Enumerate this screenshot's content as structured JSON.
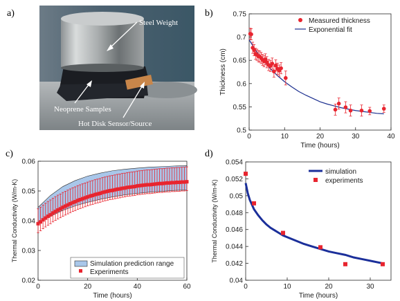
{
  "panel_letters": [
    "a)",
    "b)",
    "c)",
    "d)"
  ],
  "photo": {
    "labels": {
      "weight": "Steel Weight",
      "samples": "Neoprene Samples",
      "sensor": "Hot Disk Sensor/Source"
    },
    "colors": {
      "background": "#3f5a6a",
      "table": "#9fa3a6",
      "weight": "#b9bcbd",
      "neoprene": "#1b1d22",
      "sensor": "#c8864a",
      "label": "#ffffff"
    }
  },
  "chart_data": [
    {
      "panel": "b)",
      "type": "scatter",
      "title": "",
      "xlabel": "Time (hours)",
      "ylabel": "Thickness (cm)",
      "xlim": [
        0,
        40
      ],
      "ylim": [
        0.5,
        0.75
      ],
      "xticks": [
        "0",
        "10",
        "20",
        "30",
        "40"
      ],
      "yticks": [
        "0.5",
        "0.55",
        "0.6",
        "0.65",
        "0.7",
        "0.75"
      ],
      "legend": {
        "position": "top-right",
        "entries": [
          "Measured thickness",
          "Exponential fit"
        ]
      },
      "series": [
        {
          "name": "Measured thickness",
          "color": "#e8252f",
          "x": [
            0.3,
            0.6,
            1.0,
            1.4,
            1.8,
            2.2,
            2.6,
            3.0,
            3.4,
            3.8,
            4.2,
            4.6,
            5.0,
            5.5,
            6.0,
            6.5,
            7.0,
            7.5,
            8.0,
            8.5,
            9.0,
            10.3,
            24.3,
            25.3,
            27.2,
            28.6,
            31.7,
            34.0,
            38.0
          ],
          "y": [
            0.707,
            0.706,
            0.677,
            0.672,
            0.664,
            0.662,
            0.659,
            0.658,
            0.655,
            0.651,
            0.648,
            0.652,
            0.646,
            0.64,
            0.638,
            0.643,
            0.626,
            0.639,
            0.632,
            0.628,
            0.633,
            0.612,
            0.544,
            0.557,
            0.549,
            0.542,
            0.542,
            0.541,
            0.546
          ],
          "err": [
            0.012,
            0.012,
            0.012,
            0.012,
            0.012,
            0.012,
            0.012,
            0.012,
            0.012,
            0.012,
            0.012,
            0.012,
            0.012,
            0.012,
            0.012,
            0.012,
            0.012,
            0.012,
            0.012,
            0.012,
            0.012,
            0.015,
            0.012,
            0.012,
            0.012,
            0.012,
            0.012,
            0.008,
            0.008
          ]
        },
        {
          "name": "Exponential fit",
          "color": "#1b2f8f",
          "x": [
            0,
            2,
            4,
            6,
            8,
            10,
            12,
            14,
            16,
            18,
            20,
            22,
            24,
            26,
            28,
            30,
            32,
            34,
            36,
            38
          ],
          "y": [
            0.694,
            0.67,
            0.65,
            0.632,
            0.617,
            0.604,
            0.593,
            0.583,
            0.575,
            0.568,
            0.561,
            0.556,
            0.552,
            0.548,
            0.545,
            0.542,
            0.54,
            0.538,
            0.536,
            0.535
          ]
        }
      ]
    },
    {
      "panel": "c)",
      "type": "area",
      "title": "",
      "xlabel": "Time (hours)",
      "ylabel": "Thermal Conductivity (W/m-K)",
      "xlim": [
        0,
        60
      ],
      "ylim": [
        0.02,
        0.06
      ],
      "xticks": [
        "0",
        "20",
        "40",
        "60"
      ],
      "yticks": [
        "0.02",
        "0.03",
        "0.04",
        "0.05",
        "0.06"
      ],
      "legend": {
        "position": "bottom-right",
        "entries": [
          "Simulation prediction range",
          "Experiments"
        ]
      },
      "band": {
        "name": "Simulation prediction range",
        "color": "#a9c7ea",
        "x": [
          0,
          5,
          10,
          15,
          20,
          25,
          30,
          35,
          40,
          45,
          50,
          55,
          60
        ],
        "upper": [
          0.0445,
          0.0485,
          0.0515,
          0.0535,
          0.055,
          0.056,
          0.0568,
          0.0573,
          0.0577,
          0.058,
          0.0582,
          0.0584,
          0.0585
        ],
        "lower": [
          0.0395,
          0.0415,
          0.0435,
          0.045,
          0.0462,
          0.0472,
          0.048,
          0.0487,
          0.0492,
          0.0496,
          0.0499,
          0.0502,
          0.0503
        ]
      },
      "experiments": {
        "name": "Experiments",
        "color": "#e8252f",
        "x": [
          0,
          1,
          2,
          3,
          4,
          5,
          6,
          7,
          8,
          9,
          10,
          11,
          12,
          13,
          14,
          15,
          16,
          17,
          18,
          19,
          20,
          21,
          22,
          23,
          24,
          25,
          26,
          27,
          28,
          29,
          30,
          31,
          32,
          33,
          34,
          35,
          36,
          37,
          38,
          39,
          40,
          41,
          42,
          43,
          44,
          45,
          46,
          47,
          48,
          49,
          50,
          51,
          52,
          53,
          54,
          55,
          56,
          57,
          58,
          59,
          60
        ],
        "y": [
          0.039,
          0.0396,
          0.0403,
          0.0409,
          0.0415,
          0.042,
          0.0426,
          0.0431,
          0.0436,
          0.044,
          0.0445,
          0.0449,
          0.0453,
          0.0457,
          0.0461,
          0.0464,
          0.0468,
          0.0471,
          0.0474,
          0.0477,
          0.048,
          0.0483,
          0.0485,
          0.0488,
          0.049,
          0.0492,
          0.0495,
          0.0497,
          0.0499,
          0.0501,
          0.0502,
          0.0504,
          0.0506,
          0.0507,
          0.0509,
          0.051,
          0.0512,
          0.0513,
          0.0514,
          0.0515,
          0.0517,
          0.0518,
          0.0519,
          0.052,
          0.0521,
          0.0521,
          0.0522,
          0.0523,
          0.0524,
          0.0525,
          0.0525,
          0.0526,
          0.0527,
          0.0527,
          0.0528,
          0.0528,
          0.0529,
          0.0529,
          0.053,
          0.053,
          0.0531
        ],
        "err_low": 0.003,
        "err_high": 0.005
      }
    },
    {
      "panel": "d)",
      "type": "line",
      "title": "",
      "xlabel": "Time (hours)",
      "ylabel": "Thermal Conductivity (W/m-K)",
      "xlim": [
        0,
        35
      ],
      "ylim": [
        0.04,
        0.054
      ],
      "xticks": [
        "0",
        "10",
        "20",
        "30"
      ],
      "yticks": [
        "0.04",
        "0.042",
        "0.044",
        "0.046",
        "0.048",
        "0.05",
        "0.052",
        "0.054"
      ],
      "legend": {
        "position": "top-right",
        "entries": [
          "simulation",
          "experiments"
        ]
      },
      "series": [
        {
          "name": "simulation",
          "color": "#1b2f9a",
          "x": [
            0,
            0.5,
            1,
            2,
            3,
            4,
            5,
            6,
            7,
            8,
            9,
            10,
            12,
            14,
            16,
            18,
            20,
            22,
            24,
            26,
            28,
            30,
            33
          ],
          "y": [
            0.0515,
            0.0503,
            0.0495,
            0.0484,
            0.0477,
            0.0471,
            0.0466,
            0.0462,
            0.0459,
            0.0456,
            0.0453,
            0.0451,
            0.0447,
            0.0443,
            0.044,
            0.0437,
            0.0434,
            0.0432,
            0.043,
            0.0427,
            0.0425,
            0.0423,
            0.042
          ]
        },
        {
          "name": "experiments",
          "color": "#e8252f",
          "x": [
            0,
            2,
            9,
            18,
            24,
            33
          ],
          "y": [
            0.0526,
            0.0491,
            0.0456,
            0.0439,
            0.0419,
            0.0419
          ]
        }
      ]
    }
  ]
}
